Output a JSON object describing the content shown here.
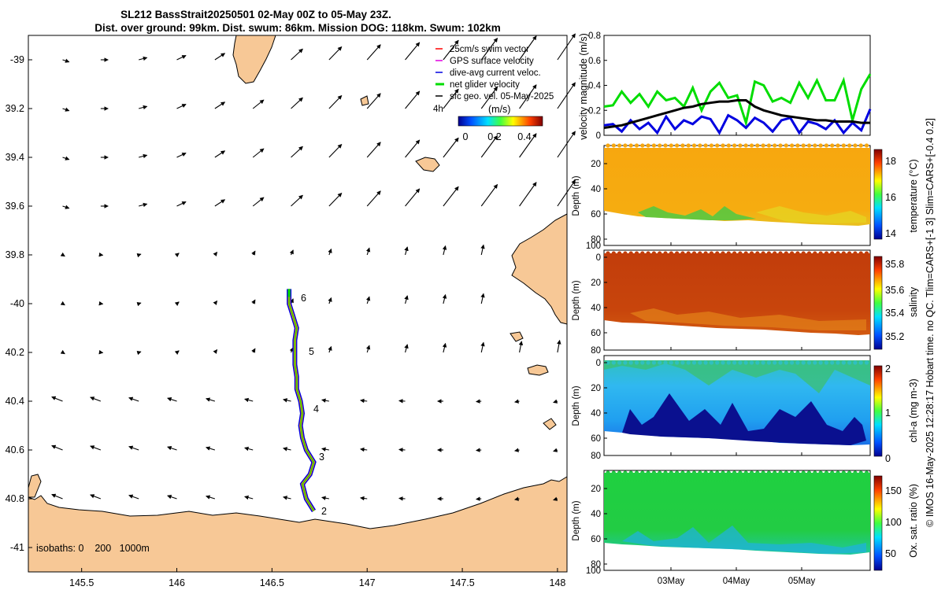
{
  "title": {
    "line1": "SL212 BassStrait20250501 02-May 00Z to 05-May 23Z.",
    "line2": "Dist. over ground: 99km. Dist. swum: 86km. Mission DOG: 118km. Swum: 102km"
  },
  "map": {
    "lon_ticks": [
      "145.5",
      "146",
      "146.5",
      "147",
      "147.5",
      "148"
    ],
    "lat_ticks": [
      "-39",
      "39.2",
      "39.4",
      "39.6",
      "39.8",
      "-40",
      "40.2",
      "40.4",
      "40.6",
      "40.8",
      "-41"
    ],
    "isobaths_label": "isobaths: 0    200   1000m",
    "track_day_labels": [
      "6",
      "5",
      "4",
      "3",
      "2"
    ],
    "legend": {
      "items": [
        {
          "label": "25cm/s swim vector",
          "color": "#ff0000"
        },
        {
          "label": "GPS surface velocity",
          "color": "#e000e0"
        },
        {
          "label": "dive-avg current veloc.",
          "color": "#0000e0"
        },
        {
          "label": "net glider velocity",
          "color": "#00dd00"
        },
        {
          "label": "sfc geo. vel. 05-May-2025",
          "color": "#000000"
        }
      ],
      "interval": "4h",
      "units": "(m/s)",
      "colorbar_ticks": [
        "0",
        "0.2",
        "0.4"
      ]
    },
    "land_color": "#f7c896"
  },
  "velocity_panel": {
    "ylabel": "velocity magnitude (m/s)",
    "yticks": [
      "0",
      "0.2",
      "0.4",
      "0.6",
      "0.8"
    ],
    "ylim": [
      0,
      0.8
    ]
  },
  "depth_panels": [
    {
      "ylabel": "Depth (m)",
      "yticks": [
        "20",
        "40",
        "60",
        "80",
        "100"
      ],
      "cbar_label": "temperature (°C)",
      "cbar_ticks": [
        "18",
        "16",
        "14"
      ]
    },
    {
      "ylabel": "Depth (m)",
      "yticks": [
        "0",
        "20",
        "40",
        "60",
        "80"
      ],
      "cbar_label": "salinity",
      "cbar_ticks": [
        "35.8",
        "35.6",
        "35.4",
        "35.2"
      ]
    },
    {
      "ylabel": "Depth (m)",
      "yticks": [
        "0",
        "20",
        "40",
        "60",
        "80"
      ],
      "cbar_label": "chl-a (mg m-3)",
      "cbar_ticks": [
        "2",
        "1",
        "0"
      ]
    },
    {
      "ylabel": "Depth (m)",
      "yticks": [
        "20",
        "40",
        "60",
        "80",
        "100"
      ],
      "cbar_label": "Ox. sat. ratio (%)",
      "cbar_ticks": [
        "150",
        "100",
        "50"
      ]
    }
  ],
  "time_ticks": [
    "03May",
    "04May",
    "05May"
  ],
  "side_note": "© IMOS 16-May-2025 12:28:17 Hobart time. no QC. Tlim=CARS+[-1 3] Slim=CARS+[-0.4 0.2]",
  "chart_data": [
    {
      "type": "line",
      "title": "velocity magnitude",
      "ylabel": "velocity magnitude (m/s)",
      "ylim": [
        0,
        0.8
      ],
      "series": [
        {
          "name": "net glider velocity",
          "color": "#00dd00",
          "values": [
            0.23,
            0.24,
            0.35,
            0.26,
            0.33,
            0.23,
            0.35,
            0.28,
            0.3,
            0.23,
            0.38,
            0.2,
            0.35,
            0.42,
            0.3,
            0.32,
            0.1,
            0.43,
            0.4,
            0.27,
            0.3,
            0.26,
            0.42,
            0.3,
            0.44,
            0.28,
            0.28,
            0.44,
            0.12,
            0.37,
            0.49
          ]
        },
        {
          "name": "dive-avg current veloc.",
          "color": "#0000e0",
          "values": [
            0.08,
            0.09,
            0.03,
            0.12,
            0.05,
            0.1,
            0.02,
            0.15,
            0.05,
            0.12,
            0.09,
            0.15,
            0.13,
            0.02,
            0.16,
            0.12,
            0.06,
            0.14,
            0.1,
            0.03,
            0.12,
            0.14,
            0.02,
            0.11,
            0.09,
            0.05,
            0.12,
            0.02,
            0.1,
            0.04,
            0.21
          ]
        },
        {
          "name": "mean",
          "color": "#000000",
          "values": [
            0.06,
            0.07,
            0.08,
            0.1,
            0.12,
            0.14,
            0.16,
            0.18,
            0.2,
            0.22,
            0.23,
            0.25,
            0.26,
            0.27,
            0.27,
            0.28,
            0.28,
            0.23,
            0.2,
            0.18,
            0.16,
            0.15,
            0.14,
            0.13,
            0.12,
            0.12,
            0.11,
            0.11,
            0.11,
            0.1,
            0.1
          ]
        }
      ]
    },
    {
      "type": "quiver",
      "title": "sfc geo. vel. 05-May-2025",
      "x_range": [
        145.22,
        148.05
      ],
      "y_range": [
        -41.1,
        -38.9
      ],
      "track": [
        [
          -40.85,
          146.72
        ],
        [
          -40.8,
          146.68
        ],
        [
          -40.74,
          146.66
        ],
        [
          -40.7,
          146.7
        ],
        [
          -40.65,
          146.72
        ],
        [
          -40.6,
          146.68
        ],
        [
          -40.55,
          146.66
        ],
        [
          -40.5,
          146.65
        ],
        [
          -40.45,
          146.66
        ],
        [
          -40.4,
          146.65
        ],
        [
          -40.35,
          146.63
        ],
        [
          -40.3,
          146.63
        ],
        [
          -40.25,
          146.62
        ],
        [
          -40.2,
          146.62
        ],
        [
          -40.15,
          146.62
        ],
        [
          -40.1,
          146.63
        ],
        [
          -40.05,
          146.61
        ],
        [
          -40.0,
          146.59
        ],
        [
          -39.94,
          146.59
        ]
      ]
    }
  ]
}
